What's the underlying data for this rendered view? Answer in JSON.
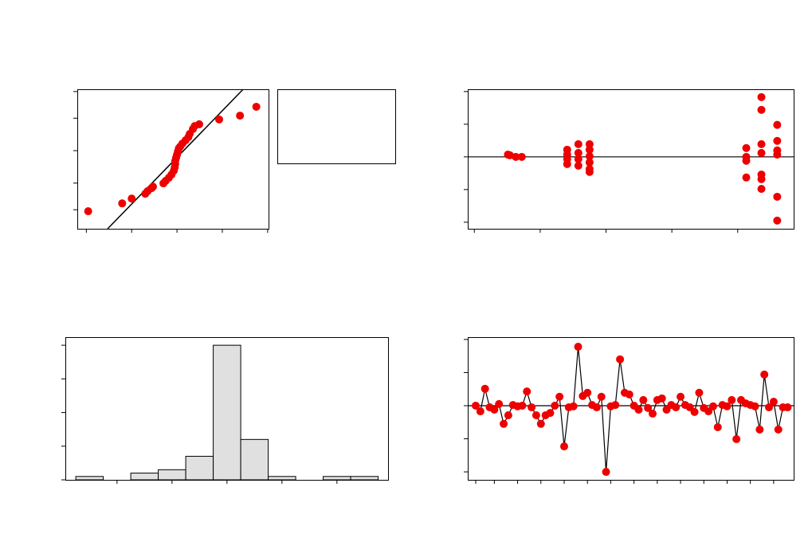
{
  "chart_data": [
    {
      "type": "probability",
      "color": "#ee0000",
      "x": [
        -1.96,
        -1.21,
        -1.0,
        -0.7,
        -0.65,
        -0.56,
        -0.53,
        -0.3,
        -0.25,
        -0.18,
        -0.12,
        -0.07,
        -0.05,
        -0.04,
        -0.04,
        -0.02,
        0,
        0.02,
        0.04,
        0.07,
        0.12,
        0.19,
        0.25,
        0.28,
        0.35,
        0.39,
        0.49,
        0.93,
        1.39,
        1.75
      ],
      "values": [
        -2.39,
        -2.08,
        -1.89,
        -1.7,
        -1.6,
        -1.48,
        -1.42,
        -1.29,
        -1.19,
        -1.07,
        -0.94,
        -0.79,
        -0.66,
        -0.53,
        -0.41,
        -0.28,
        -0.16,
        -0.03,
        0.09,
        0.16,
        0.28,
        0.41,
        0.53,
        0.66,
        0.85,
        0.97,
        1.04,
        1.23,
        1.38,
        1.73
      ],
      "fit_line": {
        "x": [
          -1.53,
          1.46
        ],
        "y": [
          -3.08,
          2.42
        ]
      },
      "xlim": [
        -2.2,
        2.02
      ],
      "xticks": [
        -2,
        -1,
        0,
        1,
        2
      ],
      "ylim": [
        -3.08,
        2.42
      ],
      "yticks": [
        -2.33,
        -1.28,
        0,
        1.28,
        2.33
      ]
    },
    {
      "type": "scatter",
      "color": "#ee0000",
      "x": [
        1.51,
        1.54,
        1.63,
        1.72,
        2.41,
        2.41,
        2.41,
        2.41,
        2.58,
        2.58,
        2.58,
        2.58,
        2.75,
        2.75,
        2.75,
        2.75,
        2.75,
        2.75,
        5.13,
        5.13,
        5.13,
        5.13,
        5.36,
        5.36,
        5.36,
        5.36,
        5.36,
        5.36,
        5.36,
        5.6,
        5.6,
        5.6,
        5.6,
        5.6,
        5.6
      ],
      "values": [
        0.07,
        0.05,
        0,
        0,
        0.22,
        0.07,
        -0.07,
        -0.22,
        0.39,
        0.12,
        -0.07,
        -0.27,
        0.39,
        0.22,
        0.02,
        -0.17,
        -0.37,
        -0.46,
        0.27,
        0,
        -0.12,
        -0.63,
        1.83,
        1.44,
        0.39,
        0.12,
        -0.54,
        -0.68,
        -0.98,
        0.98,
        0.49,
        0.2,
        0.07,
        -1.22,
        -1.95
      ],
      "ref_line": 0,
      "xlim": [
        0.9,
        5.85
      ],
      "xticks": [
        1,
        2,
        3,
        4,
        5
      ],
      "ylim": [
        -2.2,
        2.07
      ],
      "yticks": [
        -2,
        -1,
        0,
        1,
        2
      ]
    },
    {
      "type": "histogram",
      "color": "#e0e0e0",
      "bins": [
        -2.75,
        -2.25,
        -1.75,
        -1.25,
        -0.75,
        -0.25,
        0.25,
        0.75,
        1.25,
        1.75,
        2.25,
        2.75
      ],
      "values": [
        1,
        0,
        2,
        3,
        7,
        40,
        12,
        1,
        0,
        1,
        1
      ],
      "xlim": [
        -2.94,
        2.93
      ],
      "xticks": [
        -2,
        -1,
        0,
        1,
        2
      ],
      "ylim": [
        0,
        42.4
      ],
      "yticks": [
        0,
        10,
        20,
        30,
        40
      ]
    },
    {
      "type": "line",
      "color": "#ee0000",
      "x": [
        1,
        2,
        3,
        4,
        5,
        6,
        7,
        8,
        9,
        10,
        11,
        12,
        13,
        14,
        15,
        16,
        17,
        18,
        19,
        20,
        21,
        22,
        23,
        24,
        25,
        26,
        27,
        28,
        29,
        30,
        31,
        32,
        33,
        34,
        35,
        36,
        37,
        38,
        39,
        40,
        41,
        42,
        43,
        44,
        45,
        46,
        47,
        48,
        49,
        50,
        51,
        52,
        53,
        54,
        55,
        56,
        57,
        58,
        59,
        60,
        61,
        62,
        63,
        64,
        65,
        66,
        67,
        68
      ],
      "values": [
        0,
        -0.17,
        0.51,
        -0.05,
        -0.12,
        0.05,
        -0.55,
        -0.29,
        0.02,
        -0.02,
        0,
        0.43,
        -0.05,
        -0.29,
        -0.55,
        -0.29,
        -0.22,
        0,
        0.27,
        -1.23,
        -0.05,
        -0.02,
        1.78,
        0.29,
        0.39,
        0.02,
        -0.05,
        0.27,
        -2,
        -0.02,
        0.02,
        1.4,
        0.39,
        0.34,
        0,
        -0.12,
        0.17,
        -0.07,
        -0.24,
        0.17,
        0.22,
        -0.12,
        0.02,
        -0.05,
        0.27,
        0.02,
        -0.05,
        -0.19,
        0.39,
        -0.07,
        -0.17,
        -0.02,
        -0.65,
        0.02,
        -0.02,
        0.17,
        -1.01,
        0.17,
        0.07,
        0.02,
        -0.02,
        -0.72,
        0.94,
        -0.05,
        0.12,
        -0.72,
        -0.05,
        -0.05
      ],
      "ref_line": 0,
      "xlim": [
        -0.71,
        69.3
      ],
      "xticks": [
        1,
        5,
        10,
        15,
        20,
        25,
        30,
        35,
        40,
        45,
        50,
        55,
        60,
        65
      ],
      "ylim": [
        -2.24,
        2.07
      ],
      "yticks": [
        -2,
        -1,
        0,
        1,
        2
      ]
    }
  ]
}
